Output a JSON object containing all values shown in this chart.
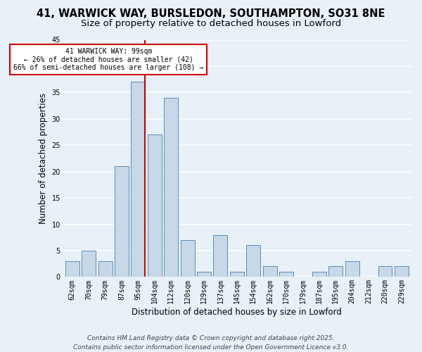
{
  "title_line1": "41, WARWICK WAY, BURSLEDON, SOUTHAMPTON, SO31 8NE",
  "title_line2": "Size of property relative to detached houses in Lowford",
  "xlabel": "Distribution of detached houses by size in Lowford",
  "ylabel": "Number of detached properties",
  "footer_line1": "Contains HM Land Registry data © Crown copyright and database right 2025.",
  "footer_line2": "Contains public sector information licensed under the Open Government Licence v3.0.",
  "categories": [
    "62sqm",
    "70sqm",
    "79sqm",
    "87sqm",
    "95sqm",
    "104sqm",
    "112sqm",
    "120sqm",
    "129sqm",
    "137sqm",
    "145sqm",
    "154sqm",
    "162sqm",
    "170sqm",
    "179sqm",
    "187sqm",
    "195sqm",
    "204sqm",
    "212sqm",
    "220sqm",
    "229sqm"
  ],
  "values": [
    3,
    5,
    3,
    21,
    37,
    27,
    34,
    7,
    1,
    8,
    1,
    6,
    2,
    1,
    0,
    1,
    2,
    3,
    0,
    2,
    2
  ],
  "bar_color": "#c8d8e8",
  "bar_edge_color": "#5b8db8",
  "annotation_text": "41 WARWICK WAY: 99sqm\n← 26% of detached houses are smaller (42)\n66% of semi-detached houses are larger (108) →",
  "annotation_box_color": "#ffffff",
  "annotation_box_edge_color": "#cc0000",
  "vline_color": "#cc0000",
  "ylim": [
    0,
    45
  ],
  "yticks": [
    0,
    5,
    10,
    15,
    20,
    25,
    30,
    35,
    40,
    45
  ],
  "bg_color": "#e8f0f8",
  "plot_bg_color": "#e8f0f8",
  "grid_color": "#ffffff",
  "title_fontsize": 10.5,
  "subtitle_fontsize": 9.5,
  "axis_label_fontsize": 8.5,
  "tick_fontsize": 7,
  "annotation_fontsize": 7,
  "footer_fontsize": 6.5
}
